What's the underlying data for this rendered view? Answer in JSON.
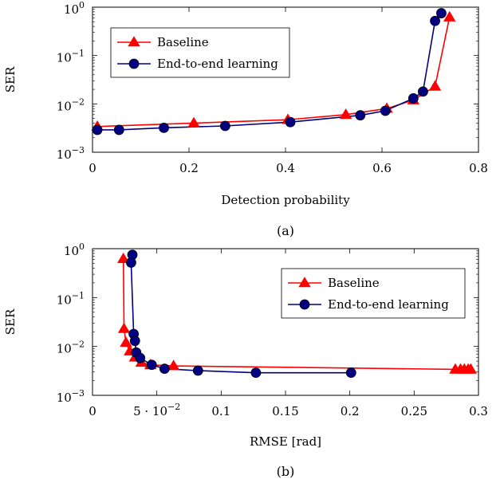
{
  "chart_data": [
    {
      "type": "line",
      "caption": "(a)",
      "xlabel": "Detection probability",
      "ylabel": "SER",
      "xlim": [
        0,
        0.8
      ],
      "ylim": [
        0.001,
        1
      ],
      "yscale": "log",
      "xticks": [
        0,
        0.2,
        0.4,
        0.6,
        0.8
      ],
      "xtick_labels": [
        "0",
        "0.2",
        "0.4",
        "0.6",
        "0.8"
      ],
      "yticks": [
        0.001,
        0.01,
        0.1,
        1
      ],
      "ytick_labels": [
        [
          "10",
          "−3"
        ],
        [
          "10",
          "−2"
        ],
        [
          "10",
          "−1"
        ],
        [
          "10",
          "0"
        ]
      ],
      "legend_position": "top-left",
      "series": [
        {
          "name": "Baseline",
          "color": "#ff0000",
          "marker": "triangle",
          "x": [
            0.01,
            0.21,
            0.405,
            0.525,
            0.61,
            0.665,
            0.71,
            0.74
          ],
          "y": [
            0.0034,
            0.004,
            0.0047,
            0.006,
            0.008,
            0.012,
            0.023,
            0.62
          ]
        },
        {
          "name": "End-to-end learning",
          "color": "#000080",
          "marker": "circle",
          "x": [
            0.01,
            0.055,
            0.148,
            0.275,
            0.41,
            0.555,
            0.607,
            0.665,
            0.685,
            0.71,
            0.723
          ],
          "y": [
            0.0029,
            0.0029,
            0.0032,
            0.0035,
            0.0042,
            0.0058,
            0.0072,
            0.013,
            0.018,
            0.52,
            0.75
          ]
        }
      ]
    },
    {
      "type": "line",
      "caption": "(b)",
      "xlabel": "RMSE [rad]",
      "ylabel": "SER",
      "xlim": [
        0,
        0.3
      ],
      "ylim": [
        0.001,
        1
      ],
      "yscale": "log",
      "xticks": [
        0,
        0.05,
        0.1,
        0.15,
        0.2,
        0.25,
        0.3
      ],
      "xtick_labels": [
        "0",
        "5 · 10",
        "0.1",
        "0.15",
        "0.2",
        "0.25",
        "0.3"
      ],
      "xtick_exponent": {
        "index": 1,
        "sup": "−2"
      },
      "yticks": [
        0.001,
        0.01,
        0.1,
        1
      ],
      "ytick_labels": [
        [
          "10",
          "−3"
        ],
        [
          "10",
          "−2"
        ],
        [
          "10",
          "−1"
        ],
        [
          "10",
          "0"
        ]
      ],
      "legend_position": "top-right",
      "series": [
        {
          "name": "Baseline",
          "color": "#ff0000",
          "marker": "triangle",
          "x": [
            0.024,
            0.0245,
            0.026,
            0.029,
            0.033,
            0.038,
            0.045,
            0.063,
            0.282,
            0.286,
            0.289,
            0.292,
            0.294
          ],
          "y": [
            0.62,
            0.023,
            0.012,
            0.008,
            0.006,
            0.0047,
            0.0042,
            0.004,
            0.0034,
            0.0034,
            0.0034,
            0.0034,
            0.0034
          ]
        },
        {
          "name": "End-to-end learning",
          "color": "#000080",
          "marker": "circle",
          "x": [
            0.031,
            0.03,
            0.032,
            0.033,
            0.034,
            0.037,
            0.046,
            0.056,
            0.082,
            0.127,
            0.201
          ],
          "y": [
            0.75,
            0.52,
            0.018,
            0.013,
            0.0075,
            0.0058,
            0.0042,
            0.0035,
            0.0032,
            0.0029,
            0.0029
          ]
        }
      ]
    }
  ]
}
